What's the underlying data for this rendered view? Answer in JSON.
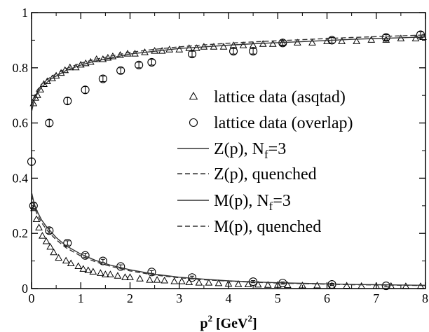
{
  "chart_data": {
    "type": "scatter",
    "title": "",
    "xlabel": "p",
    "xlabel_sup": "2",
    "xlabel_unit_open": " [GeV",
    "xlabel_unit_sup": "2",
    "xlabel_unit_close": "]",
    "ylabel": "",
    "xlim": [
      0,
      8
    ],
    "ylim": [
      0,
      1
    ],
    "x_ticks": [
      "0",
      "1",
      "2",
      "3",
      "4",
      "5",
      "6",
      "7",
      "8"
    ],
    "y_ticks": [
      "0",
      "0.2",
      "0.4",
      "0.6",
      "0.8",
      "1"
    ],
    "legend_position": "right",
    "grid": false,
    "series": [
      {
        "name": "lattice data (asqtad)",
        "marker": "triangle",
        "kind": "scatter",
        "groups": [
          {
            "x": [
              0.04,
              0.08,
              0.12,
              0.18,
              0.25,
              0.32,
              0.42,
              0.5,
              0.6,
              0.68,
              0.78,
              0.9,
              1.0,
              1.1,
              1.2,
              1.32,
              1.45,
              1.55,
              1.65,
              1.8,
              1.95,
              2.1,
              2.3,
              2.5,
              2.65,
              2.8,
              3.0,
              3.2,
              3.35,
              3.5,
              3.7,
              3.9,
              4.1,
              4.3,
              4.5,
              4.7,
              4.9,
              5.1,
              5.4,
              5.7,
              6.0,
              6.3,
              6.6,
              6.9,
              7.2,
              7.5,
              7.8,
              7.95
            ],
            "y": [
              0.67,
              0.69,
              0.7,
              0.72,
              0.74,
              0.75,
              0.76,
              0.77,
              0.78,
              0.79,
              0.8,
              0.8,
              0.81,
              0.815,
              0.82,
              0.83,
              0.83,
              0.835,
              0.84,
              0.845,
              0.85,
              0.85,
              0.855,
              0.86,
              0.86,
              0.865,
              0.865,
              0.87,
              0.87,
              0.875,
              0.875,
              0.875,
              0.88,
              0.88,
              0.88,
              0.885,
              0.885,
              0.89,
              0.89,
              0.89,
              0.895,
              0.895,
              0.895,
              0.9,
              0.9,
              0.905,
              0.905,
              0.91
            ]
          },
          {
            "x": [
              0.05,
              0.1,
              0.15,
              0.22,
              0.3,
              0.38,
              0.45,
              0.55,
              0.7,
              0.8,
              0.95,
              1.05,
              1.15,
              1.25,
              1.4,
              1.5,
              1.6,
              1.75,
              1.9,
              2.0,
              2.2,
              2.4,
              2.55,
              2.7,
              2.9,
              3.05,
              3.2,
              3.4,
              3.6,
              3.8,
              4.0,
              4.2,
              4.4,
              4.6,
              4.8,
              5.0,
              5.2,
              5.5,
              5.8,
              6.1,
              6.4,
              6.7,
              7.0,
              7.3,
              7.6,
              7.9
            ],
            "y": [
              0.29,
              0.25,
              0.22,
              0.19,
              0.17,
              0.15,
              0.13,
              0.11,
              0.1,
              0.09,
              0.08,
              0.07,
              0.065,
              0.06,
              0.055,
              0.05,
              0.05,
              0.045,
              0.04,
              0.04,
              0.035,
              0.03,
              0.03,
              0.028,
              0.025,
              0.025,
              0.022,
              0.02,
              0.02,
              0.018,
              0.016,
              0.015,
              0.014,
              0.013,
              0.012,
              0.012,
              0.011,
              0.01,
              0.01,
              0.009,
              0.009,
              0.008,
              0.008,
              0.008,
              0.007,
              0.007
            ]
          }
        ]
      },
      {
        "name": "lattice data (overlap)",
        "marker": "circle",
        "kind": "scatter",
        "groups": [
          {
            "x": [
              0.0,
              0.36,
              0.73,
              1.09,
              1.45,
              1.81,
              2.18,
              2.44,
              3.26,
              4.1,
              4.5,
              5.1,
              6.1,
              7.2,
              7.9
            ],
            "y": [
              0.46,
              0.6,
              0.68,
              0.72,
              0.76,
              0.79,
              0.81,
              0.82,
              0.85,
              0.86,
              0.86,
              0.89,
              0.9,
              0.91,
              0.92
            ],
            "err": [
              0.012,
              0.012,
              0.012,
              0.012,
              0.01,
              0.01,
              0.01,
              0.01,
              0.01,
              0.01,
              0.01,
              0.01,
              0.01,
              0.01,
              0.01
            ]
          },
          {
            "x": [
              0.04,
              0.36,
              0.73,
              1.09,
              1.45,
              1.81,
              2.44,
              3.26,
              4.5,
              5.1,
              6.1,
              7.2
            ],
            "y": [
              0.3,
              0.21,
              0.165,
              0.12,
              0.1,
              0.08,
              0.06,
              0.04,
              0.025,
              0.02,
              0.015,
              0.01
            ],
            "err": [
              0.01,
              0.01,
              0.008,
              0.008,
              0.006,
              0.006,
              0.005,
              0.005,
              0.004,
              0.004,
              0.004,
              0.004
            ]
          }
        ]
      },
      {
        "name_main": "Z(p), N",
        "name_sub": "f",
        "name_tail": "=3",
        "kind": "line",
        "dash": "solid",
        "x": [
          0.0,
          0.05,
          0.1,
          0.2,
          0.3,
          0.4,
          0.5,
          0.7,
          1.0,
          1.3,
          1.6,
          2.0,
          2.5,
          3.0,
          3.5,
          4.0,
          4.5,
          5.0,
          5.5,
          6.0,
          6.5,
          7.0,
          7.5,
          8.0
        ],
        "y": [
          0.64,
          0.68,
          0.7,
          0.73,
          0.745,
          0.76,
          0.77,
          0.79,
          0.81,
          0.825,
          0.835,
          0.85,
          0.86,
          0.87,
          0.876,
          0.882,
          0.887,
          0.891,
          0.895,
          0.899,
          0.903,
          0.906,
          0.909,
          0.912
        ]
      },
      {
        "name": "Z(p), quenched",
        "kind": "line",
        "dash": "dashed",
        "x": [
          0.0,
          0.05,
          0.1,
          0.2,
          0.3,
          0.4,
          0.5,
          0.7,
          1.0,
          1.3,
          1.6,
          2.0,
          2.5,
          3.0,
          3.5,
          4.0,
          4.5,
          5.0,
          5.5,
          6.0,
          6.5,
          7.0,
          7.5,
          8.0
        ],
        "y": [
          0.66,
          0.695,
          0.715,
          0.74,
          0.755,
          0.768,
          0.778,
          0.797,
          0.817,
          0.831,
          0.842,
          0.856,
          0.867,
          0.876,
          0.883,
          0.889,
          0.894,
          0.898,
          0.902,
          0.906,
          0.91,
          0.913,
          0.916,
          0.919
        ]
      },
      {
        "name_main": "M(p), N",
        "name_sub": "f",
        "name_tail": "=3",
        "kind": "line",
        "dash": "solid",
        "x": [
          0.0,
          0.05,
          0.1,
          0.2,
          0.3,
          0.4,
          0.5,
          0.7,
          1.0,
          1.3,
          1.6,
          2.0,
          2.5,
          3.0,
          3.5,
          4.0,
          4.5,
          5.0,
          5.5,
          6.0,
          6.5,
          7.0,
          7.5,
          8.0
        ],
        "y": [
          0.35,
          0.31,
          0.285,
          0.25,
          0.225,
          0.205,
          0.185,
          0.155,
          0.125,
          0.102,
          0.085,
          0.068,
          0.052,
          0.041,
          0.034,
          0.028,
          0.024,
          0.021,
          0.019,
          0.017,
          0.015,
          0.014,
          0.013,
          0.012
        ]
      },
      {
        "name": "M(p), quenched",
        "kind": "line",
        "dash": "dashed",
        "x": [
          0.0,
          0.05,
          0.1,
          0.2,
          0.3,
          0.4,
          0.5,
          0.7,
          1.0,
          1.3,
          1.6,
          2.0,
          2.5,
          3.0,
          3.5,
          4.0,
          4.5,
          5.0,
          5.5,
          6.0,
          6.5,
          7.0,
          7.5,
          8.0
        ],
        "y": [
          0.34,
          0.3,
          0.275,
          0.24,
          0.215,
          0.195,
          0.177,
          0.148,
          0.118,
          0.097,
          0.081,
          0.064,
          0.049,
          0.039,
          0.032,
          0.027,
          0.023,
          0.02,
          0.018,
          0.016,
          0.014,
          0.013,
          0.012,
          0.011
        ]
      }
    ]
  }
}
